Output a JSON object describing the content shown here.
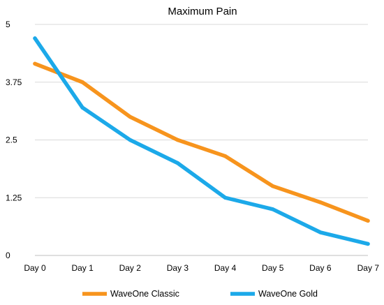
{
  "chart_data": {
    "type": "line",
    "title": "Maximum Pain",
    "xlabel": "",
    "ylabel": "",
    "categories": [
      "Day 0",
      "Day 1",
      "Day 2",
      "Day 3",
      "Day 4",
      "Day 5",
      "Day 6",
      "Day 7"
    ],
    "y_ticks": [
      "0",
      "1.25",
      "2.5",
      "3.75",
      "5"
    ],
    "y_tick_values": [
      0,
      1.25,
      2.5,
      3.75,
      5
    ],
    "ylim": [
      0,
      5
    ],
    "grid": true,
    "legend_position": "bottom",
    "series": [
      {
        "name": "WaveOne Classic",
        "color": "#F7941D",
        "values": [
          4.15,
          3.75,
          3.0,
          2.5,
          2.15,
          1.5,
          1.15,
          0.75
        ]
      },
      {
        "name": "WaveOne Gold",
        "color": "#1CA9E9",
        "values": [
          4.7,
          3.2,
          2.5,
          2.0,
          1.25,
          1.0,
          0.5,
          0.25
        ]
      }
    ]
  }
}
